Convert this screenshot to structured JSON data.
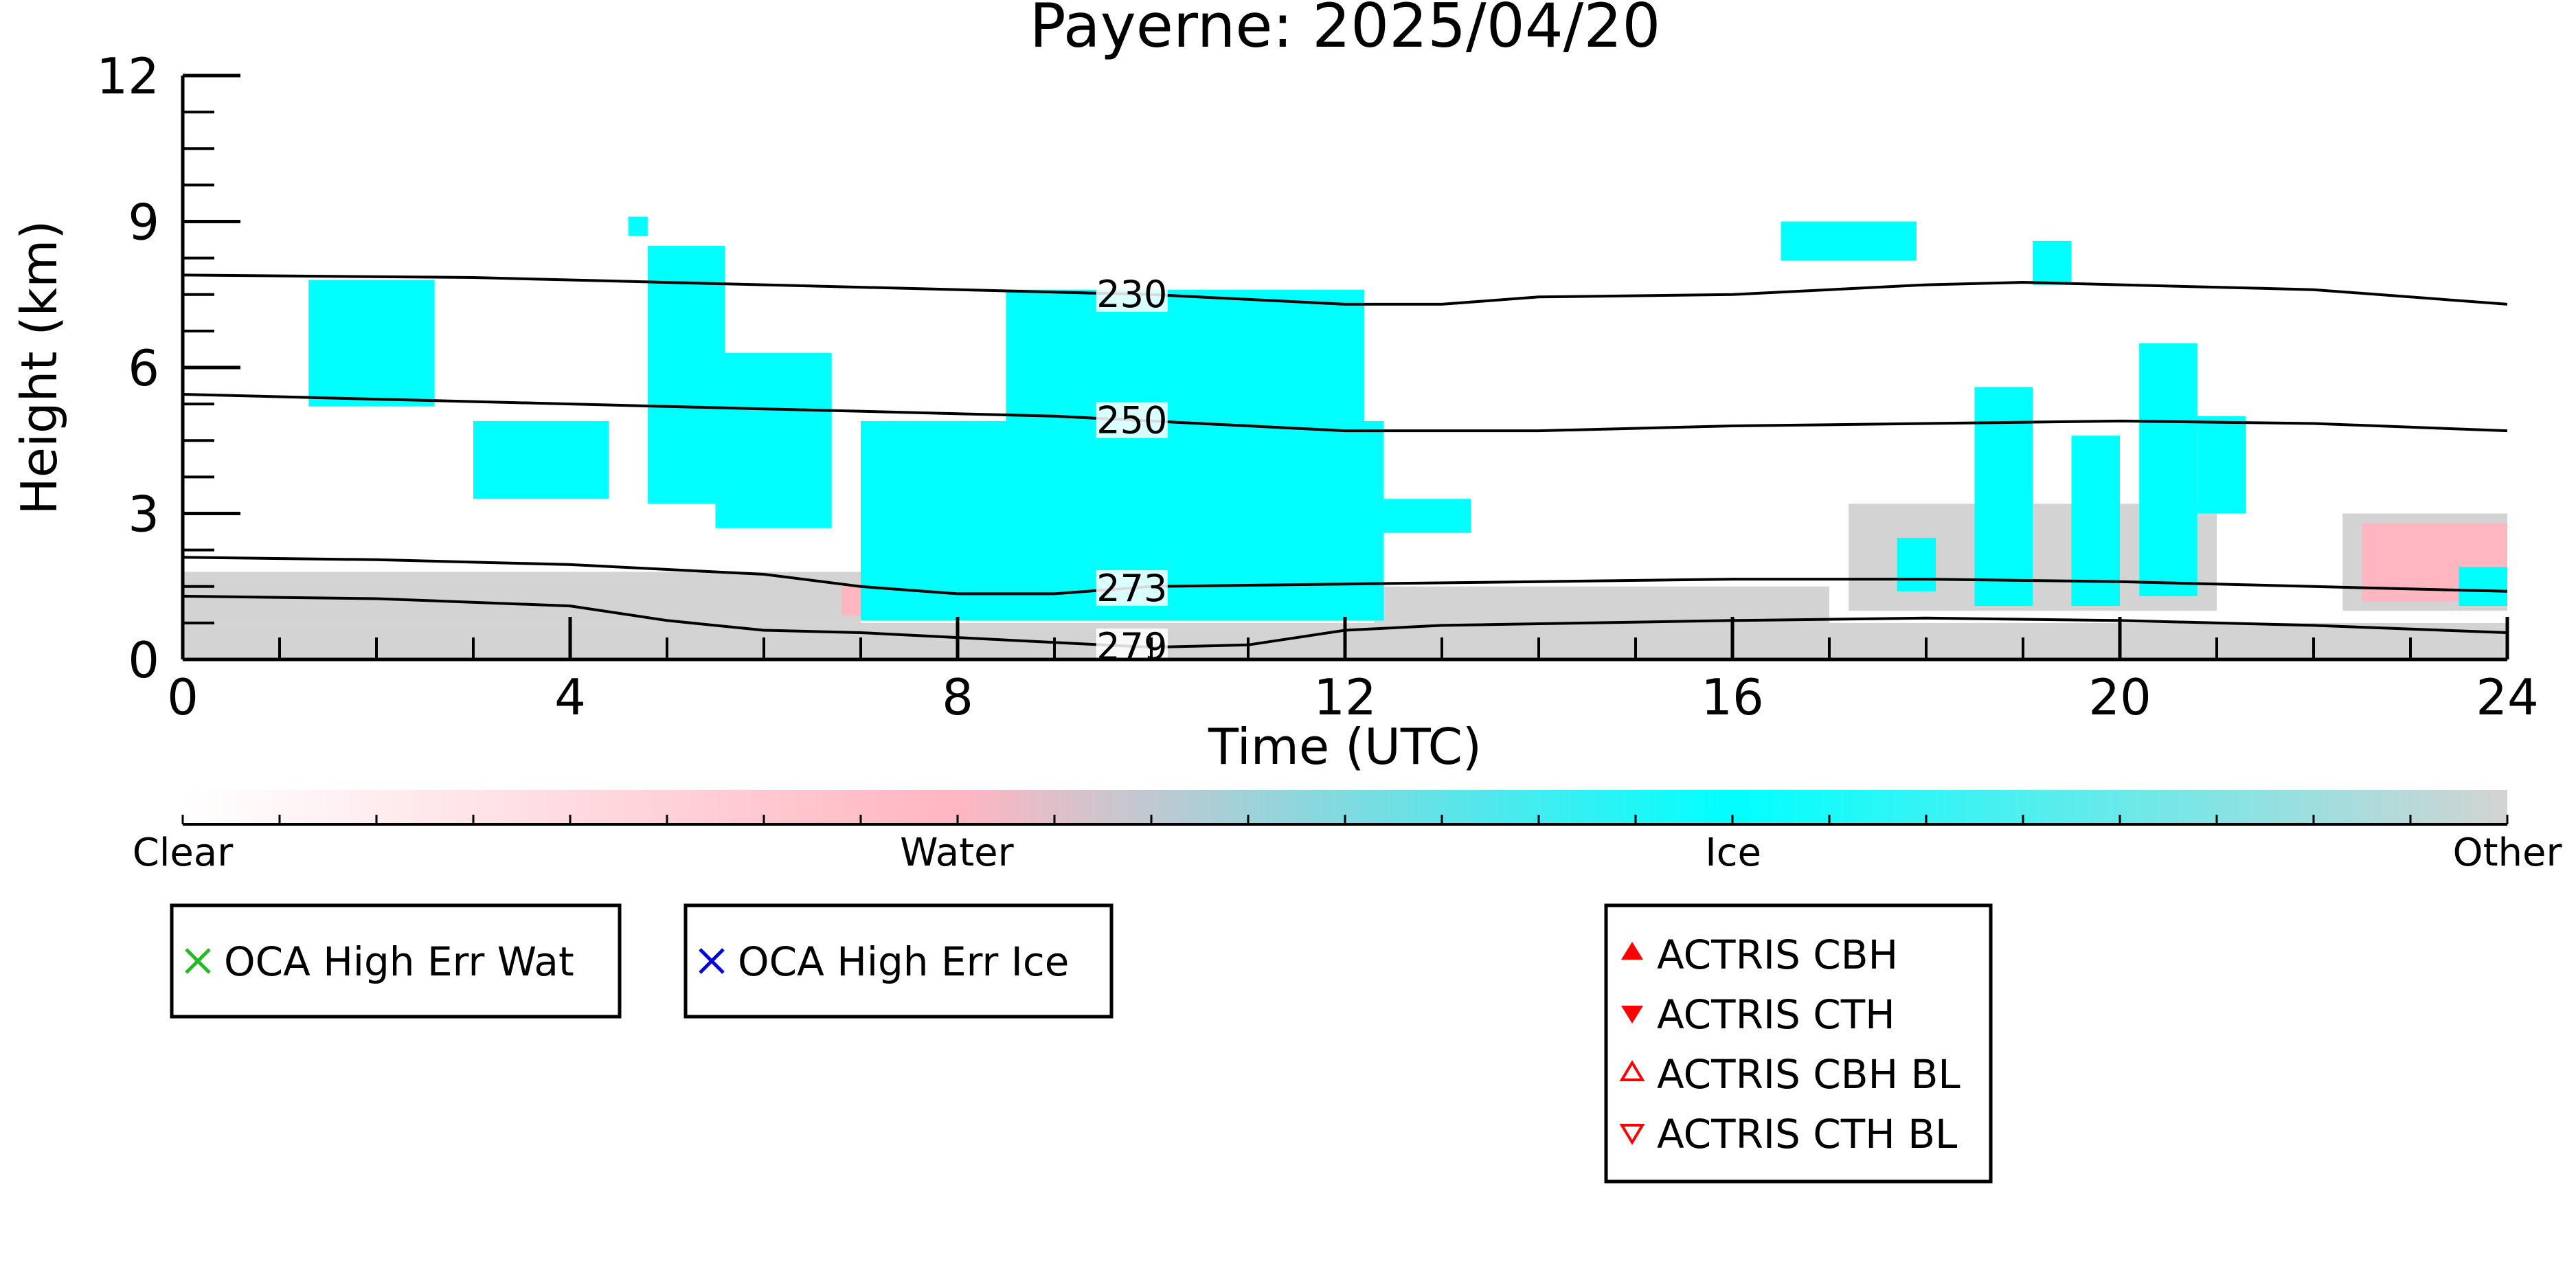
{
  "chart_data": {
    "type": "heatmap",
    "title": "Payerne: 2025/04/20",
    "xlabel": "Time (UTC)",
    "ylabel": "Height (km)",
    "xlim": [
      0,
      24
    ],
    "ylim": [
      0,
      12
    ],
    "x_ticks": [
      0,
      4,
      8,
      12,
      16,
      20,
      24
    ],
    "y_ticks": [
      0,
      3,
      6,
      9,
      12
    ],
    "x_minor_step": 1,
    "y_minor_step": 0.75,
    "grid": false,
    "colors": {
      "clear": "#ffffff",
      "water": "#ffb6c1",
      "ice": "#00ffff",
      "other": "#d3d3d3",
      "isotherm": "#000000"
    },
    "colorbar": {
      "labels": [
        "Clear",
        "Water",
        "Ice",
        "Other"
      ],
      "positions": [
        0,
        0.333,
        0.667,
        1.0
      ],
      "minor_ticks": 24
    },
    "isotherms": [
      {
        "label": "230",
        "label_x": 9.8,
        "points": [
          [
            0,
            7.9
          ],
          [
            3,
            7.85
          ],
          [
            6,
            7.7
          ],
          [
            9,
            7.55
          ],
          [
            10,
            7.5
          ],
          [
            12,
            7.3
          ],
          [
            13,
            7.3
          ],
          [
            14,
            7.45
          ],
          [
            16,
            7.5
          ],
          [
            18,
            7.7
          ],
          [
            19,
            7.75
          ],
          [
            22,
            7.6
          ],
          [
            24,
            7.3
          ]
        ]
      },
      {
        "label": "250",
        "label_x": 9.8,
        "points": [
          [
            0,
            5.45
          ],
          [
            3,
            5.3
          ],
          [
            6,
            5.15
          ],
          [
            9,
            5.0
          ],
          [
            10,
            4.9
          ],
          [
            12,
            4.7
          ],
          [
            14,
            4.7
          ],
          [
            16,
            4.8
          ],
          [
            18,
            4.85
          ],
          [
            20,
            4.9
          ],
          [
            22,
            4.85
          ],
          [
            24,
            4.7
          ]
        ]
      },
      {
        "label": "273",
        "label_x": 9.8,
        "points": [
          [
            0,
            2.1
          ],
          [
            2,
            2.05
          ],
          [
            4,
            1.95
          ],
          [
            6,
            1.75
          ],
          [
            7,
            1.5
          ],
          [
            8,
            1.35
          ],
          [
            9,
            1.35
          ],
          [
            10,
            1.5
          ],
          [
            12,
            1.55
          ],
          [
            14,
            1.6
          ],
          [
            16,
            1.65
          ],
          [
            18,
            1.65
          ],
          [
            20,
            1.6
          ],
          [
            22,
            1.5
          ],
          [
            24,
            1.4
          ]
        ]
      },
      {
        "label": "279",
        "label_x": 9.8,
        "points": [
          [
            0,
            1.3
          ],
          [
            2,
            1.25
          ],
          [
            4,
            1.1
          ],
          [
            5,
            0.8
          ],
          [
            6,
            0.6
          ],
          [
            7,
            0.55
          ],
          [
            8,
            0.45
          ],
          [
            9,
            0.35
          ],
          [
            10,
            0.25
          ],
          [
            11,
            0.3
          ],
          [
            12,
            0.6
          ],
          [
            13,
            0.7
          ],
          [
            16,
            0.8
          ],
          [
            18,
            0.85
          ],
          [
            20,
            0.8
          ],
          [
            22,
            0.7
          ],
          [
            24,
            0.55
          ]
        ]
      }
    ],
    "regions": [
      {
        "category": "other",
        "x0": 0,
        "x1": 24,
        "y0": 0,
        "y1": 0.75
      },
      {
        "category": "other",
        "x0": 0,
        "x1": 7,
        "y0": 0.75,
        "y1": 1.8
      },
      {
        "category": "other",
        "x0": 12.3,
        "x1": 17,
        "y0": 0.75,
        "y1": 1.5
      },
      {
        "category": "other",
        "x0": 17.2,
        "x1": 21,
        "y0": 1.0,
        "y1": 3.2
      },
      {
        "category": "other",
        "x0": 22.3,
        "x1": 24,
        "y0": 1.0,
        "y1": 3.0
      },
      {
        "category": "water",
        "x0": 6.8,
        "x1": 9.5,
        "y0": 0.9,
        "y1": 1.5
      },
      {
        "category": "water",
        "x0": 22.5,
        "x1": 24,
        "y0": 1.2,
        "y1": 2.8
      },
      {
        "category": "ice",
        "x0": 1.3,
        "x1": 2.6,
        "y0": 5.2,
        "y1": 7.8
      },
      {
        "category": "ice",
        "x0": 4.8,
        "x1": 5.6,
        "y0": 3.2,
        "y1": 8.5
      },
      {
        "category": "ice",
        "x0": 5.5,
        "x1": 6.7,
        "y0": 2.7,
        "y1": 6.3
      },
      {
        "category": "ice",
        "x0": 4.6,
        "x1": 4.8,
        "y0": 8.7,
        "y1": 9.1
      },
      {
        "category": "ice",
        "x0": 3.0,
        "x1": 4.4,
        "y0": 3.3,
        "y1": 4.9
      },
      {
        "category": "ice",
        "x0": 7.0,
        "x1": 12.4,
        "y0": 0.8,
        "y1": 4.9
      },
      {
        "category": "ice",
        "x0": 8.5,
        "x1": 12.2,
        "y0": 4.9,
        "y1": 7.6
      },
      {
        "category": "ice",
        "x0": 12.3,
        "x1": 13.3,
        "y0": 2.6,
        "y1": 3.3
      },
      {
        "category": "ice",
        "x0": 16.5,
        "x1": 17.9,
        "y0": 8.2,
        "y1": 9.0
      },
      {
        "category": "ice",
        "x0": 19.1,
        "x1": 19.5,
        "y0": 7.7,
        "y1": 8.6
      },
      {
        "category": "ice",
        "x0": 17.7,
        "x1": 18.1,
        "y0": 1.4,
        "y1": 2.5
      },
      {
        "category": "ice",
        "x0": 18.5,
        "x1": 19.1,
        "y0": 1.1,
        "y1": 5.6
      },
      {
        "category": "ice",
        "x0": 19.5,
        "x1": 20.0,
        "y0": 1.1,
        "y1": 4.6
      },
      {
        "category": "ice",
        "x0": 20.2,
        "x1": 20.8,
        "y0": 1.3,
        "y1": 6.5
      },
      {
        "category": "ice",
        "x0": 20.8,
        "x1": 21.3,
        "y0": 3.0,
        "y1": 5.0
      },
      {
        "category": "ice",
        "x0": 23.5,
        "x1": 24,
        "y0": 1.1,
        "y1": 1.9
      }
    ],
    "legends": [
      {
        "entries": [
          {
            "label": "OCA High Err Wat",
            "marker": "x",
            "color": "#22bb22"
          }
        ]
      },
      {
        "entries": [
          {
            "label": "OCA High Err Ice",
            "marker": "x",
            "color": "#0000dd"
          }
        ]
      },
      {
        "entries": [
          {
            "label": "ACTRIS CBH",
            "marker": "triangle-up-filled",
            "color": "#ff0000"
          },
          {
            "label": "ACTRIS CTH",
            "marker": "triangle-down-filled",
            "color": "#ff0000"
          },
          {
            "label": "ACTRIS CBH BL",
            "marker": "triangle-up-open",
            "color": "#ff0000"
          },
          {
            "label": "ACTRIS CTH BL",
            "marker": "triangle-down-open",
            "color": "#ff0000"
          }
        ]
      }
    ]
  }
}
